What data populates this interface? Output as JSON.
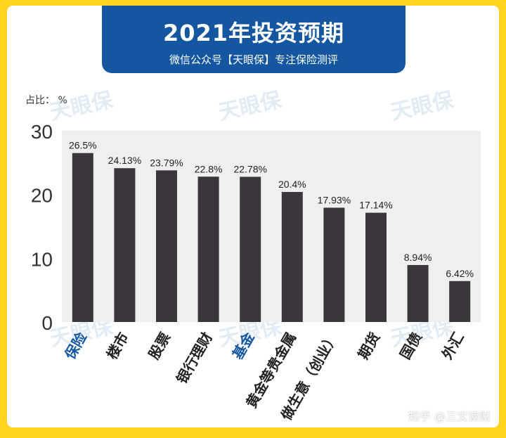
{
  "header": {
    "title": "2021年投资预期",
    "subtitle": "微信公众号【天眼保】专注保险测评"
  },
  "unit_label": "占比：  %",
  "watermark": "天眼保",
  "credit": "知乎 @三文读财",
  "colors": {
    "frame": "#FFD21F",
    "banner": "#1457A0",
    "bar": "#3A363B",
    "plot_bg": "#EFEFEF",
    "highlight_label": "#1457A0",
    "label": "#222222"
  },
  "chart_data": {
    "type": "bar",
    "title": "2021年投资预期",
    "ylabel": "占比：  %",
    "ylim": [
      0,
      30
    ],
    "yticks": [
      0,
      10,
      20,
      30
    ],
    "grid": false,
    "categories": [
      "保险",
      "楼市",
      "股票",
      "银行理财",
      "基金",
      "黄金等贵金属",
      "做生意（创业）",
      "期货",
      "国债",
      "外汇"
    ],
    "values": [
      26.5,
      24.13,
      23.79,
      22.8,
      22.78,
      20.4,
      17.93,
      17.14,
      8.94,
      6.42
    ],
    "data_labels": [
      "26.5%",
      "24.13%",
      "23.79%",
      "22.8%",
      "22.78%",
      "20.4%",
      "17.93%",
      "17.14%",
      "8.94%",
      "6.42%"
    ],
    "highlighted": [
      "保险",
      "基金"
    ]
  }
}
